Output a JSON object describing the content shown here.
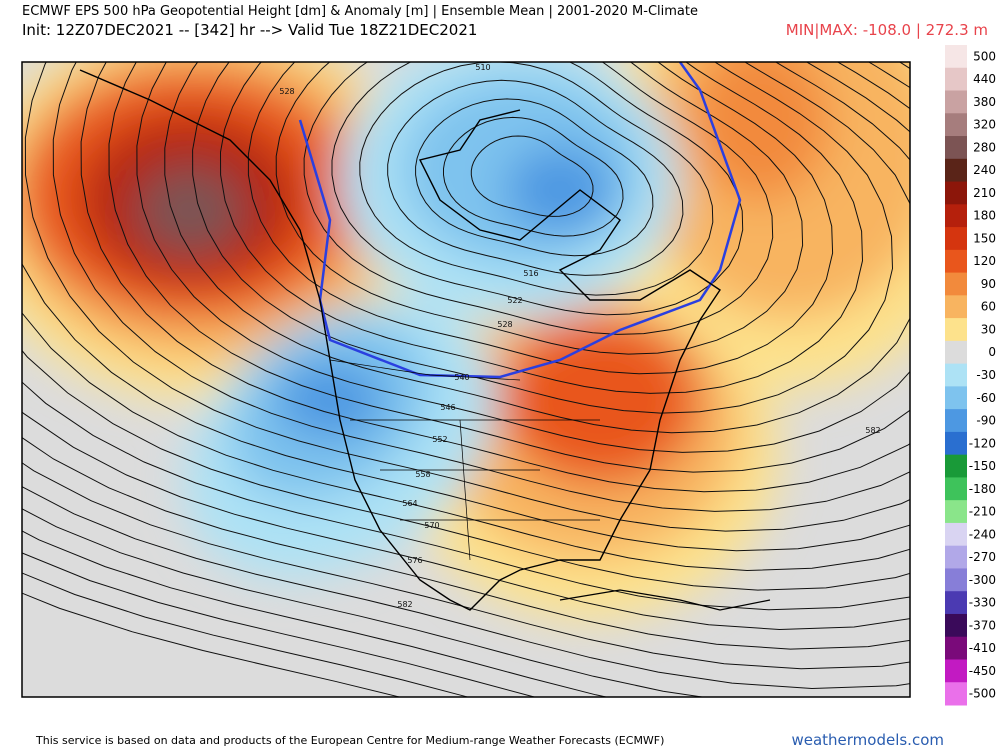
{
  "header": {
    "title": "ECMWF EPS 500 hPa Geopotential Height [dm] & Anomaly [m] | Ensemble Mean | 2001-2020 M-Climate",
    "init": "Init: 12Z07DEC2021 -- [342] hr --> Valid Tue 18Z21DEC2021",
    "minmax": "MIN|MAX: -108.0 | 272.3 m"
  },
  "colorbar": [
    {
      "label": "500",
      "color": "#f6e6e6"
    },
    {
      "label": "440",
      "color": "#e6c7c7"
    },
    {
      "label": "380",
      "color": "#c9a2a2"
    },
    {
      "label": "320",
      "color": "#a67d7d"
    },
    {
      "label": "280",
      "color": "#7c5454"
    },
    {
      "label": "240",
      "color": "#5a2418"
    },
    {
      "label": "210",
      "color": "#8c160a"
    },
    {
      "label": "180",
      "color": "#b5200c"
    },
    {
      "label": "150",
      "color": "#d5350f"
    },
    {
      "label": "120",
      "color": "#e9561c"
    },
    {
      "label": "90",
      "color": "#f28a3c"
    },
    {
      "label": "60",
      "color": "#f8b460"
    },
    {
      "label": "30",
      "color": "#fde28c"
    },
    {
      "label": "0",
      "color": "#dcdcdc"
    },
    {
      "label": "-30",
      "color": "#ade2f5"
    },
    {
      "label": "-60",
      "color": "#7ec3ee"
    },
    {
      "label": "-90",
      "color": "#4d98e2"
    },
    {
      "label": "-120",
      "color": "#2a6fd0"
    },
    {
      "label": "-150",
      "color": "#199a38"
    },
    {
      "label": "-180",
      "color": "#3ec35b"
    },
    {
      "label": "-210",
      "color": "#8ae58a"
    },
    {
      "label": "-240",
      "color": "#d9d4f2"
    },
    {
      "label": "-270",
      "color": "#b1a8e8"
    },
    {
      "label": "-300",
      "color": "#877ed8"
    },
    {
      "label": "-330",
      "color": "#4b3ab2"
    },
    {
      "label": "-370",
      "color": "#3a0a5a"
    },
    {
      "label": "-410",
      "color": "#7a0a7a"
    },
    {
      "label": "-450",
      "color": "#c21ac2"
    },
    {
      "label": "-500",
      "color": "#ea70ea"
    }
  ],
  "contour_labels": [
    "510",
    "528",
    "516",
    "522",
    "528",
    "540",
    "546",
    "552",
    "558",
    "564",
    "570",
    "576",
    "582",
    "582"
  ],
  "footer": {
    "text": "This service is based on data and products of the European Centre for Medium-range Weather Forecasts (ECMWF)",
    "site": "weathermodels.com"
  }
}
